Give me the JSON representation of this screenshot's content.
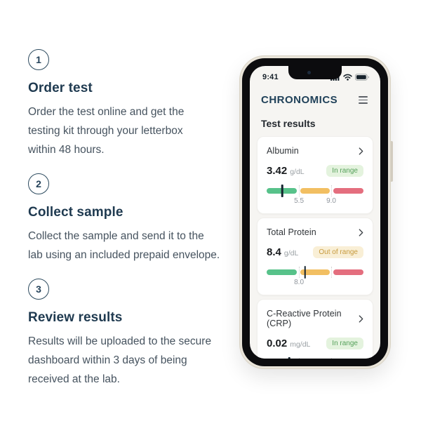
{
  "steps": [
    {
      "number": "1",
      "title": "Order test",
      "description": "Order the test online and get the\ntesting kit through your letterbox\nwithin 48 hours."
    },
    {
      "number": "2",
      "title": "Collect sample",
      "description": "Collect the sample and send it to the\nlab using an included prepaid envelope."
    },
    {
      "number": "3",
      "title": "Review results",
      "description": "Results will be uploaded to the secure\ndashboard within 3 days of being\nreceived at the lab."
    }
  ],
  "phone": {
    "status_bar": {
      "time": "9:41",
      "icons": [
        "cellular-signal-icon",
        "wifi-icon",
        "battery-icon"
      ]
    },
    "header": {
      "logo": "CHRONOMICS",
      "menu_icon": "hamburger-icon"
    },
    "screen_title": "Test results",
    "results": [
      {
        "name": "Albumin",
        "value": "3.42",
        "unit": "g/dL",
        "status": "In range",
        "status_type": "in_range",
        "ticks": [
          "5.5",
          "9.0"
        ],
        "marker": {
          "segment": 0,
          "percent": 52
        }
      },
      {
        "name": "Total Protein",
        "value": "8.4",
        "unit": "g/dL",
        "status": "Out of range",
        "status_type": "out_of_range",
        "ticks": [
          "8.0",
          ""
        ],
        "marker": {
          "segment": 1,
          "percent": 17
        }
      },
      {
        "name": "C-Reactive Protein (CRP)",
        "value": "0.02",
        "unit": "mg/dL",
        "status": "In range",
        "status_type": "in_range",
        "ticks": [
          "",
          ""
        ],
        "marker": {
          "segment": 0,
          "percent": 76
        }
      }
    ],
    "colors": {
      "bar_green": "#57c28a",
      "bar_orange": "#f2bf62",
      "bar_red": "#e46e7e",
      "badge_green_bg": "#e4f3de",
      "badge_green_text": "#55a05a",
      "badge_orange_bg": "#f9efd6",
      "badge_orange_text": "#c79a3d",
      "logo_color": "#21425a"
    }
  }
}
